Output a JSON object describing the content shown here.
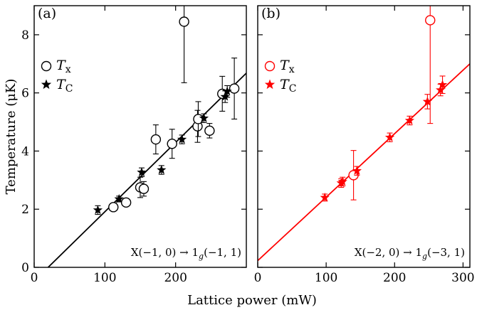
{
  "chart_data": [
    {
      "type": "scatter",
      "panel_label": "(a)",
      "color": "#000000",
      "xlim": [
        0,
        300
      ],
      "ylim": [
        0,
        9
      ],
      "x_ticks": [
        0,
        100,
        200
      ],
      "y_ticks": [
        0,
        2,
        4,
        6,
        8
      ],
      "annotation": "X(−1, 0) → 1g(−1, 1)",
      "legend": [
        "Tx",
        "TC"
      ],
      "legend_position": "upper-left",
      "series": [
        {
          "name": "Tx",
          "marker": "open-circle",
          "points": [
            {
              "x": 112,
              "y": 2.07,
              "err": 0.12
            },
            {
              "x": 130,
              "y": 2.23,
              "err": 0.12
            },
            {
              "x": 150,
              "y": 2.75,
              "err": 0.35
            },
            {
              "x": 155,
              "y": 2.7,
              "err": 0.25
            },
            {
              "x": 172,
              "y": 4.4,
              "err": 0.5
            },
            {
              "x": 195,
              "y": 4.25,
              "err": 0.5
            },
            {
              "x": 212,
              "y": 8.45,
              "err": 2.1
            },
            {
              "x": 231,
              "y": 4.85,
              "err": 0.55
            },
            {
              "x": 232,
              "y": 5.1,
              "err": 0.6
            },
            {
              "x": 248,
              "y": 4.7,
              "err": 0.25
            },
            {
              "x": 266,
              "y": 5.97,
              "err": 0.6
            },
            {
              "x": 283,
              "y": 6.15,
              "err": 1.05
            }
          ]
        },
        {
          "name": "TC",
          "marker": "filled-star",
          "points": [
            {
              "x": 90,
              "y": 1.97,
              "err": 0.15
            },
            {
              "x": 120,
              "y": 2.35,
              "err": 0.1
            },
            {
              "x": 152,
              "y": 3.27,
              "err": 0.15
            },
            {
              "x": 180,
              "y": 3.35,
              "err": 0.15
            },
            {
              "x": 209,
              "y": 4.4,
              "err": 0.15
            },
            {
              "x": 240,
              "y": 5.13,
              "err": 0.15
            },
            {
              "x": 270,
              "y": 5.87,
              "err": 0.2
            },
            {
              "x": 273,
              "y": 6.05,
              "err": 0.2
            }
          ]
        }
      ],
      "fit_line": {
        "x": [
          0,
          300
        ],
        "y": [
          -0.47,
          6.68
        ]
      }
    },
    {
      "type": "scatter",
      "panel_label": "(b)",
      "color": "#ff0000",
      "xlim": [
        0,
        310
      ],
      "ylim": [
        0,
        9
      ],
      "x_ticks": [
        0,
        100,
        200,
        300
      ],
      "y_ticks": [
        0,
        2,
        4,
        6,
        8
      ],
      "annotation": "X(−2, 0) → 1g(−3, 1)",
      "legend": [
        "Tx",
        "TC"
      ],
      "legend_position": "upper-left",
      "series": [
        {
          "name": "Tx",
          "marker": "open-circle",
          "points": [
            {
              "x": 140,
              "y": 3.17,
              "err": 0.85
            },
            {
              "x": 252,
              "y": 8.5,
              "err": 3.55
            }
          ]
        },
        {
          "name": "TC",
          "marker": "filled-star",
          "points": [
            {
              "x": 98,
              "y": 2.4,
              "err": 0.12
            },
            {
              "x": 122,
              "y": 2.9,
              "err": 0.15
            },
            {
              "x": 124,
              "y": 2.95,
              "err": 0.15
            },
            {
              "x": 145,
              "y": 3.32,
              "err": 0.15
            },
            {
              "x": 193,
              "y": 4.47,
              "err": 0.15
            },
            {
              "x": 222,
              "y": 5.05,
              "err": 0.15
            },
            {
              "x": 248,
              "y": 5.7,
              "err": 0.25
            },
            {
              "x": 267,
              "y": 6.1,
              "err": 0.2
            },
            {
              "x": 270,
              "y": 6.28,
              "err": 0.3
            }
          ]
        }
      ],
      "fit_line": {
        "x": [
          0,
          310
        ],
        "y": [
          0.23,
          7.0
        ]
      }
    }
  ],
  "axes": {
    "xlabel": "Lattice power (mW)",
    "ylabel": "Temperature (μK)"
  }
}
